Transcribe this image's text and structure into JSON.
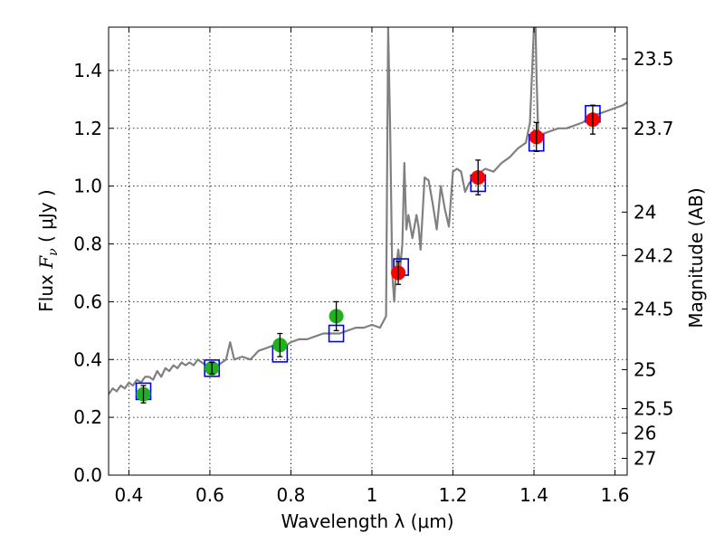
{
  "chart_data": {
    "type": "scatter",
    "xlabel": "Wavelength  λ (μm)",
    "ylabel": {
      "prefix": "Flux  ",
      "symbol": "F",
      "subscript": "ν",
      "unit": "  ( μJy )"
    },
    "y2label": "Magnitude (AB)",
    "xlim": [
      0.35,
      1.63
    ],
    "ylim": [
      0.0,
      1.55
    ],
    "x_ticks": [
      "0.4",
      "0.6",
      "0.8",
      "1",
      "1.2",
      "1.4",
      "1.6"
    ],
    "y_ticks": [
      "0.0",
      "0.2",
      "0.4",
      "0.6",
      "0.8",
      "1.0",
      "1.2",
      "1.4"
    ],
    "y2_ticks": [
      {
        "label": "23.5",
        "flux": 1.44
      },
      {
        "label": "23.7",
        "flux": 1.2
      },
      {
        "label": "24",
        "flux": 0.91
      },
      {
        "label": "24.2",
        "flux": 0.76
      },
      {
        "label": "24.5",
        "flux": 0.575
      },
      {
        "label": "25",
        "flux": 0.365
      },
      {
        "label": "25.5",
        "flux": 0.23
      },
      {
        "label": "26",
        "flux": 0.145
      },
      {
        "label": "27",
        "flux": 0.058
      }
    ],
    "grid": true,
    "colors": {
      "model": "#808080",
      "model_points": "#0000ff",
      "optical": "#1fb11f",
      "infrared": "#ff0000",
      "errorbar": "#000000"
    },
    "series": [
      {
        "kind": "model-spectrum",
        "x": [
          0.35,
          0.36,
          0.37,
          0.38,
          0.39,
          0.4,
          0.41,
          0.42,
          0.43,
          0.44,
          0.45,
          0.46,
          0.47,
          0.48,
          0.49,
          0.5,
          0.51,
          0.52,
          0.53,
          0.54,
          0.55,
          0.56,
          0.57,
          0.58,
          0.59,
          0.6,
          0.62,
          0.64,
          0.65,
          0.66,
          0.68,
          0.7,
          0.72,
          0.74,
          0.76,
          0.78,
          0.8,
          0.82,
          0.84,
          0.86,
          0.88,
          0.9,
          0.92,
          0.94,
          0.96,
          0.98,
          1.0,
          1.02,
          1.035,
          1.04,
          1.045,
          1.05,
          1.055,
          1.06,
          1.065,
          1.07,
          1.075,
          1.08,
          1.085,
          1.09,
          1.1,
          1.11,
          1.115,
          1.12,
          1.13,
          1.14,
          1.15,
          1.16,
          1.17,
          1.18,
          1.19,
          1.2,
          1.21,
          1.22,
          1.23,
          1.24,
          1.26,
          1.28,
          1.3,
          1.32,
          1.34,
          1.36,
          1.38,
          1.39,
          1.4,
          1.402,
          1.404,
          1.406,
          1.41,
          1.415,
          1.42,
          1.44,
          1.46,
          1.48,
          1.5,
          1.52,
          1.54,
          1.56,
          1.58,
          1.6,
          1.62,
          1.63
        ],
        "y": [
          0.28,
          0.3,
          0.29,
          0.31,
          0.3,
          0.32,
          0.31,
          0.33,
          0.32,
          0.34,
          0.34,
          0.33,
          0.36,
          0.34,
          0.37,
          0.36,
          0.38,
          0.37,
          0.39,
          0.38,
          0.39,
          0.38,
          0.4,
          0.39,
          0.38,
          0.39,
          0.38,
          0.4,
          0.46,
          0.4,
          0.41,
          0.4,
          0.43,
          0.44,
          0.45,
          0.44,
          0.46,
          0.47,
          0.47,
          0.48,
          0.49,
          0.49,
          0.49,
          0.5,
          0.51,
          0.51,
          0.52,
          0.51,
          0.55,
          1.55,
          1.2,
          0.7,
          0.6,
          0.72,
          0.78,
          0.72,
          0.8,
          1.08,
          0.85,
          0.9,
          0.82,
          0.9,
          0.86,
          0.78,
          1.03,
          1.02,
          0.94,
          0.85,
          1.0,
          0.92,
          0.86,
          1.05,
          1.06,
          1.05,
          0.98,
          1.01,
          1.04,
          1.06,
          1.05,
          1.08,
          1.1,
          1.13,
          1.15,
          1.22,
          1.55,
          1.55,
          1.55,
          1.4,
          1.2,
          1.17,
          1.18,
          1.19,
          1.2,
          1.2,
          1.21,
          1.22,
          1.24,
          1.25,
          1.26,
          1.27,
          1.28,
          1.29
        ]
      },
      {
        "kind": "model-points",
        "x": [
          0.436,
          0.605,
          0.773,
          0.912,
          1.072,
          1.262,
          1.406,
          1.545
        ],
        "y": [
          0.29,
          0.37,
          0.42,
          0.49,
          0.72,
          1.01,
          1.15,
          1.25
        ]
      },
      {
        "kind": "observed",
        "x": [
          0.436,
          0.605,
          0.773,
          0.912,
          1.065,
          1.262,
          1.406,
          1.545
        ],
        "y": [
          0.28,
          0.37,
          0.45,
          0.55,
          0.7,
          1.03,
          1.17,
          1.23
        ],
        "err": [
          0.03,
          0.02,
          0.04,
          0.05,
          0.04,
          0.06,
          0.05,
          0.05
        ],
        "colors": [
          "optical",
          "optical",
          "optical",
          "optical",
          "infrared",
          "infrared",
          "infrared",
          "infrared"
        ]
      }
    ]
  }
}
